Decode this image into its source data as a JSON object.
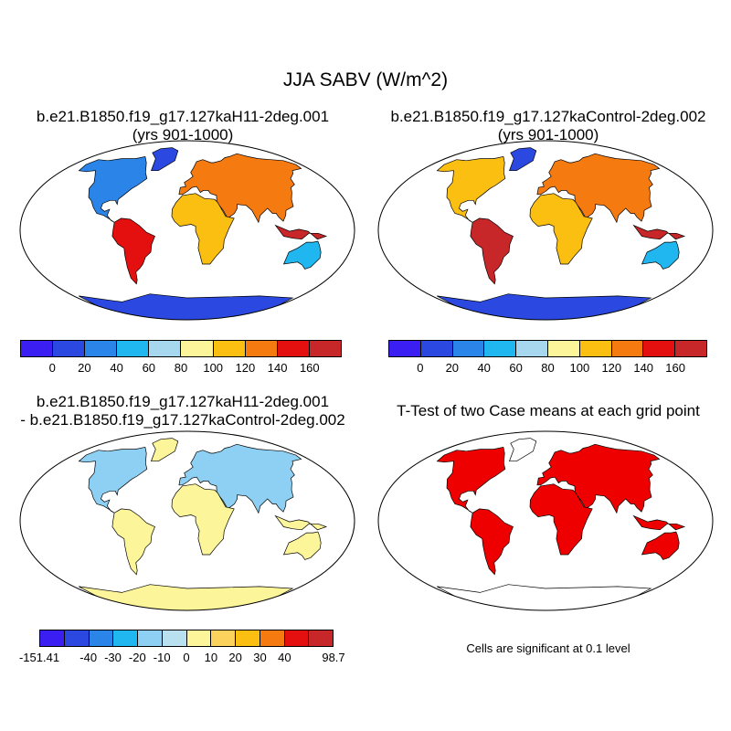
{
  "title": "JJA SABV (W/m^2)",
  "panels": {
    "case1": {
      "title_line1": "b.e21.B1850.f19_g17.127kaH11-2deg.001",
      "title_line2": "(yrs 901-1000)"
    },
    "case2": {
      "title_line1": "b.e21.B1850.f19_g17.127kaControl-2deg.002",
      "title_line2": "(yrs 901-1000)"
    },
    "diff": {
      "title_line1": "b.e21.B1850.f19_g17.127kaH11-2deg.001",
      "title_line2": "- b.e21.B1850.f19_g17.127kaControl-2deg.002"
    },
    "ttest": {
      "title": "T-Test of two Case means at each grid point",
      "note": "Cells are significant at 0.1 level"
    }
  },
  "colorbars": {
    "mean": {
      "colors": [
        "#3b1ff2",
        "#2b49e0",
        "#2b84e8",
        "#20b7f0",
        "#a7d7ee",
        "#fdf59a",
        "#fbbf12",
        "#f57a10",
        "#e4100f",
        "#c8272a"
      ],
      "labels": [
        "0",
        "20",
        "40",
        "60",
        "80",
        "100",
        "120",
        "140",
        "160"
      ]
    },
    "diff": {
      "colors": [
        "#3b1ff2",
        "#2b49e0",
        "#2b84e8",
        "#20b7f0",
        "#8ed0f3",
        "#b9e0ef",
        "#fdf59a",
        "#fbd35c",
        "#fbbf12",
        "#f57a10",
        "#e4100f",
        "#c8272a"
      ],
      "labels": [
        "-151.41",
        "-40",
        "-30",
        "-20",
        "-10",
        "0",
        "10",
        "20",
        "30",
        "40",
        "98.7"
      ]
    }
  },
  "significance_color": "#ee0000"
}
